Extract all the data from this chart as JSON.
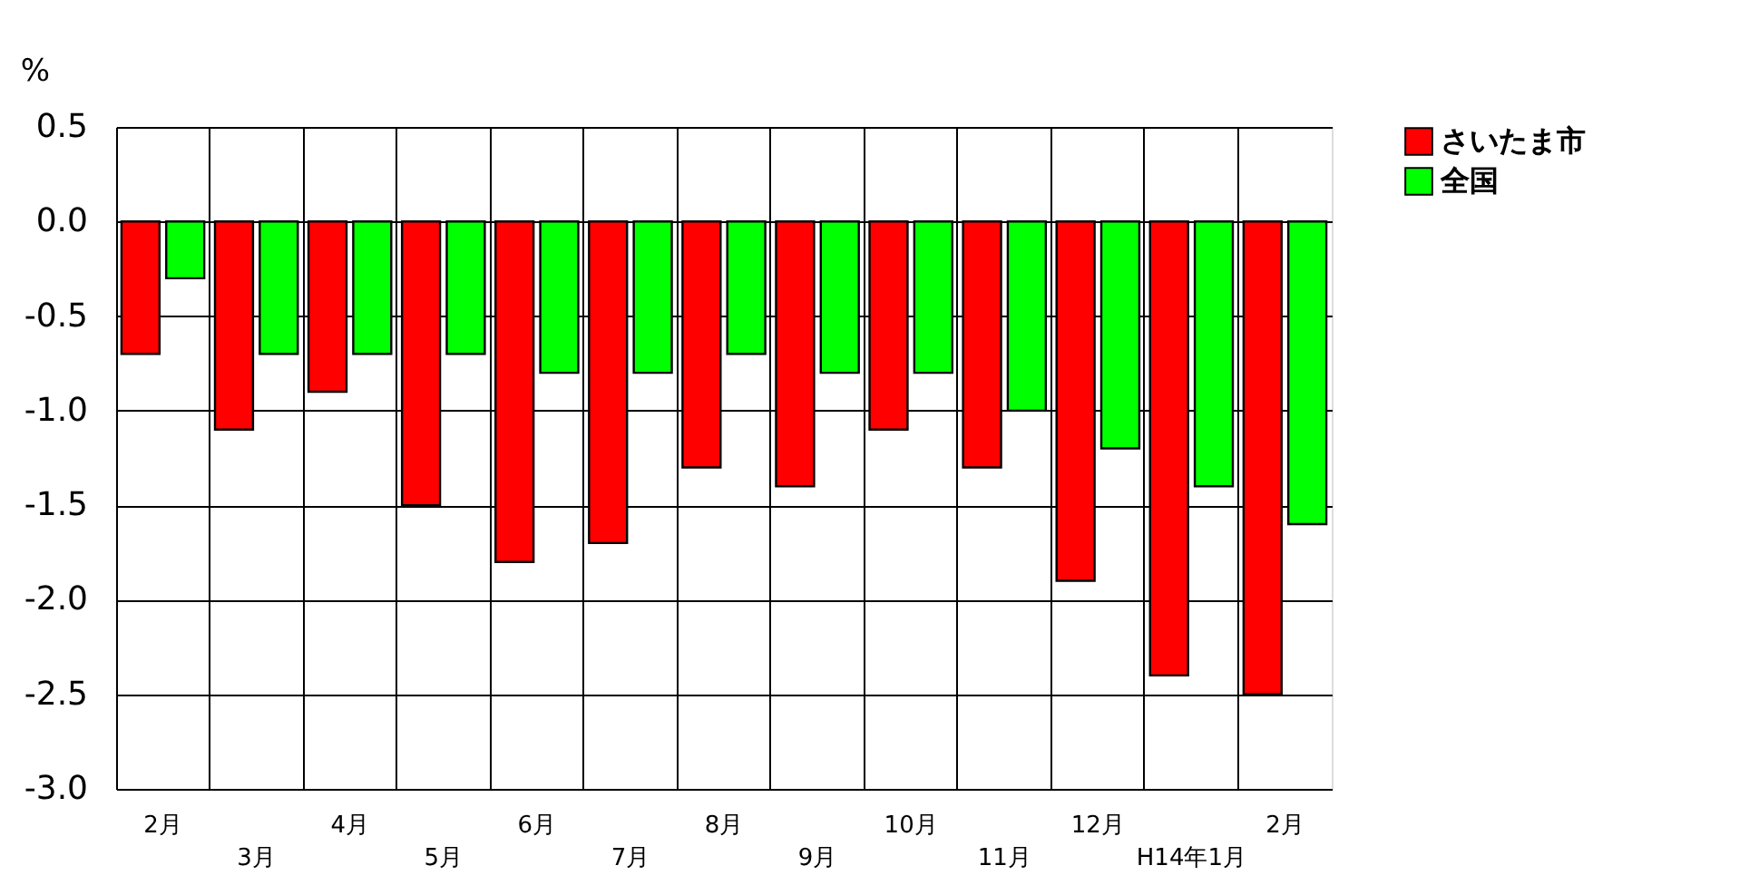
{
  "chart_data": {
    "type": "bar",
    "ylabel": "%",
    "categories": [
      "2月",
      "3月",
      "4月",
      "5月",
      "6月",
      "7月",
      "8月",
      "9月",
      "10月",
      "11月",
      "12月",
      "H14年1月",
      "2月"
    ],
    "series": [
      {
        "name": "さいたま市",
        "color": "#ff0000",
        "values": [
          -0.7,
          -1.1,
          -0.9,
          -1.5,
          -1.8,
          -1.7,
          -1.3,
          -1.4,
          -1.1,
          -1.3,
          -1.9,
          -2.4,
          -2.5
        ]
      },
      {
        "name": "全国",
        "color": "#00ff00",
        "values": [
          -0.3,
          -0.7,
          -0.7,
          -0.7,
          -0.8,
          -0.8,
          -0.7,
          -0.8,
          -0.8,
          -1.0,
          -1.2,
          -1.4,
          -1.6
        ]
      }
    ],
    "ylim": [
      -3.0,
      0.5
    ],
    "yticks": [
      {
        "value": 0.5,
        "label": "0.5"
      },
      {
        "value": 0.0,
        "label": "0.0"
      },
      {
        "value": -0.5,
        "label": "-0.5"
      },
      {
        "value": -1.0,
        "label": "-1.0"
      },
      {
        "value": -1.5,
        "label": "-1.5"
      },
      {
        "value": -2.0,
        "label": "-2.0"
      },
      {
        "value": -2.5,
        "label": "-2.5"
      },
      {
        "value": -3.0,
        "label": "-3.0"
      }
    ],
    "grid": true,
    "legend": "top right"
  }
}
